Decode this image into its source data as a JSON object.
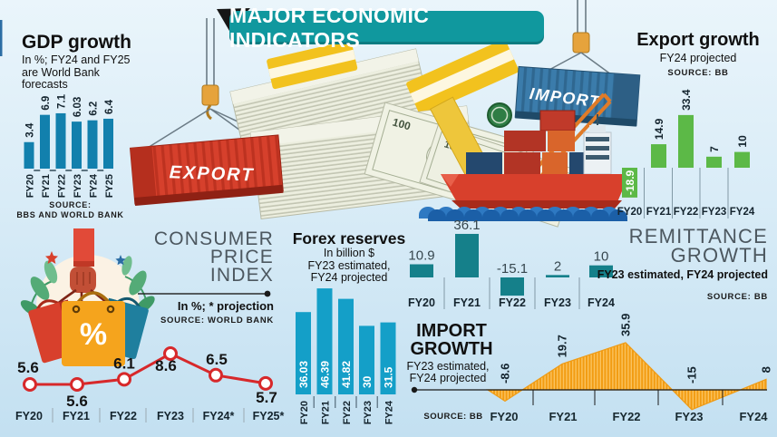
{
  "banner": {
    "title": "MAJOR ECONOMIC INDICATORS",
    "bg_color": "#10989e"
  },
  "panels": {
    "gdp": {
      "title": "GDP growth",
      "subtitle_lines": [
        "In %; FY24 and FY25",
        "are World Bank",
        "forecasts"
      ],
      "source_lines": [
        "SOURCE:",
        "BBS AND WORLD BANK"
      ]
    },
    "export": {
      "title": "Export growth",
      "subtitle": "FY24 projected",
      "source": "SOURCE: BB"
    },
    "cpi": {
      "title_lines": [
        "CONSUMER",
        "PRICE",
        "INDEX"
      ],
      "note": "In %; * projection",
      "source": "SOURCE: WORLD BANK"
    },
    "forex": {
      "title": "Forex reserves",
      "subtitle": "In billion $",
      "subtitle_lines": [
        "FY23 estimated,",
        "FY24 projected"
      ]
    },
    "remittance": {
      "title_lines": [
        "REMITTANCE",
        "GROWTH"
      ],
      "subtitle": "FY23 estimated, FY24 projected",
      "source": "SOURCE: BB"
    },
    "import": {
      "title_lines": [
        "IMPORT",
        "GROWTH"
      ],
      "subtitle_lines": [
        "FY23 estimated,",
        "FY24 projected"
      ],
      "source": "SOURCE: BB"
    }
  },
  "artwork": {
    "export_container_label": "EXPORT",
    "import_container_label": "IMPORT",
    "bag_symbol": "%",
    "bill_value": "100"
  },
  "colors": {
    "gdp_bar": "#1280ad",
    "export_bar": "#5cb947",
    "forex_bar": "#149fc8",
    "remittance_bar": "#15808a",
    "cpi_line": "#d7282a",
    "import_area": "#f6a41f",
    "label_dark": "#14242e"
  },
  "chart_data": [
    {
      "id": "gdp",
      "type": "bar",
      "title": "GDP growth",
      "subtitle": "In %; FY24 and FY25 are World Bank forecasts",
      "source": "BBS AND WORLD BANK",
      "unit": "%",
      "categories": [
        "FY20",
        "FY21",
        "FY22",
        "FY23",
        "FY24",
        "FY25"
      ],
      "values": [
        3.4,
        6.9,
        7.1,
        6.03,
        6.2,
        6.4
      ]
    },
    {
      "id": "export",
      "type": "bar",
      "title": "Export growth",
      "subtitle": "FY24 projected",
      "source": "BB",
      "unit": "%",
      "categories": [
        "FY20",
        "FY21",
        "FY22",
        "FY23",
        "FY24"
      ],
      "values": [
        -18.9,
        14.9,
        33.4,
        7,
        10
      ]
    },
    {
      "id": "cpi",
      "type": "line",
      "title": "Consumer Price Index",
      "subtitle": "In %; * projection",
      "source": "WORLD BANK",
      "unit": "%",
      "categories": [
        "FY20",
        "FY21",
        "FY22",
        "FY23",
        "FY24*",
        "FY25*"
      ],
      "values": [
        5.6,
        5.6,
        6.1,
        8.6,
        6.5,
        5.7
      ]
    },
    {
      "id": "forex",
      "type": "bar",
      "title": "Forex reserves",
      "subtitle": "In billion $; FY23 estimated, FY24 projected",
      "unit": "billion $",
      "categories": [
        "FY20",
        "FY21",
        "FY22",
        "FY23",
        "FY24"
      ],
      "values": [
        36.03,
        46.39,
        41.82,
        30,
        31.5
      ]
    },
    {
      "id": "remittance",
      "type": "bar",
      "title": "Remittance growth",
      "subtitle": "FY23 estimated, FY24 projected",
      "source": "BB",
      "unit": "%",
      "categories": [
        "FY20",
        "FY21",
        "FY22",
        "FY23",
        "FY24"
      ],
      "values": [
        10.9,
        36.1,
        -15.1,
        2,
        10
      ]
    },
    {
      "id": "import",
      "type": "area",
      "title": "Import growth",
      "subtitle": "FY23 estimated, FY24 projected",
      "source": "BB",
      "unit": "%",
      "categories": [
        "FY20",
        "FY21",
        "FY22",
        "FY23",
        "FY24"
      ],
      "values": [
        -8.6,
        19.7,
        35.9,
        -15,
        8
      ]
    }
  ]
}
